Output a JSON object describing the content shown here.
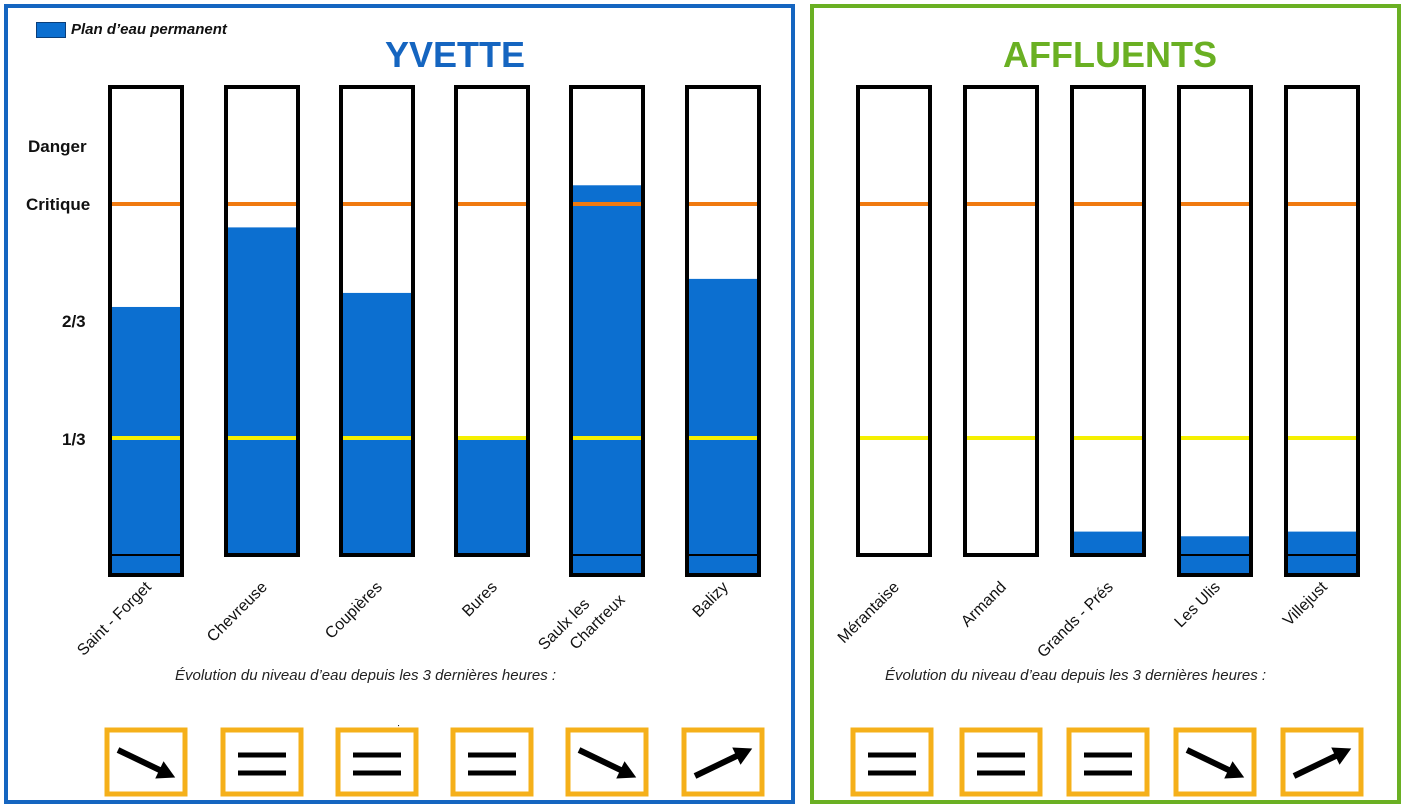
{
  "legend": {
    "label": "Plan d’eau permanent",
    "color": "#0c6fd0"
  },
  "panels": [
    {
      "title": "YVETTE",
      "color": "#1565c0",
      "evolution_caption": "Évolution du niveau d’eau depuis les 3 dernières heures :"
    },
    {
      "title": "AFFLUENTS",
      "color": "#6ab023",
      "evolution_caption": "Évolution du niveau d’eau depuis les 3 dernières heures :"
    }
  ],
  "level_labels": {
    "danger": "Danger",
    "critique": "Critique",
    "two_thirds": "2/3",
    "one_third": "1/3"
  },
  "stray_mark": ":",
  "colors": {
    "danger": "#ee1111",
    "critique": "#ee1111",
    "two_thirds": "#f07a10",
    "one_third": "#f5f000",
    "water": "#0c6fd0",
    "arrow_box": "#f5b01a"
  },
  "chart_data": {
    "type": "bar",
    "ylabel": "",
    "thresholds": [
      {
        "label": "Danger",
        "level": 1.5
      },
      {
        "label": "Critique",
        "level": 1.25
      },
      {
        "label": "2/3",
        "level": 0.75
      },
      {
        "label": "1/3",
        "level": 0.25
      }
    ],
    "series": [
      {
        "group": "YVETTE",
        "categories": [
          "Saint - Forget",
          "Chevreuse",
          "Coupières",
          "Bures",
          "Saulx les Chartreux",
          "Balizy"
        ],
        "values": [
          0.53,
          0.7,
          0.56,
          0.25,
          0.79,
          0.59
        ],
        "trend": [
          "down",
          "stable",
          "stable",
          "stable",
          "down",
          "up"
        ]
      },
      {
        "group": "AFFLUENTS",
        "categories": [
          "Mérantaise",
          "Armand",
          "Grands - Prés",
          "Les Ulis",
          "Villejust"
        ],
        "values": [
          0.0,
          0.0,
          0.05,
          0.04,
          0.05
        ],
        "trend": [
          "stable",
          "stable",
          "stable",
          "down",
          "up"
        ]
      }
    ]
  }
}
